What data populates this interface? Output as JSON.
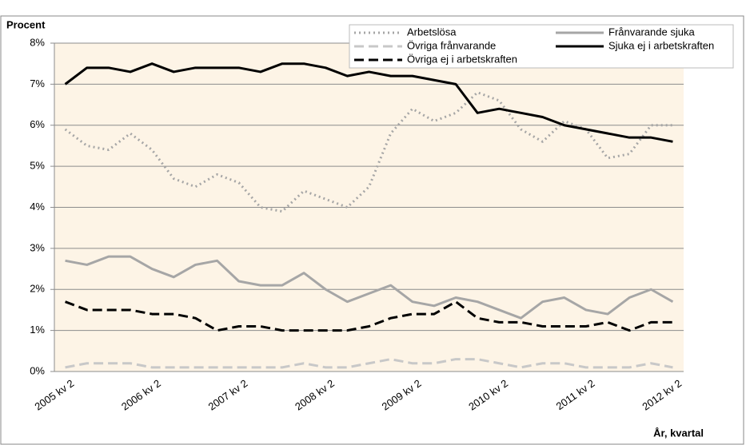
{
  "chart_data": {
    "type": "line",
    "y_label": "Procent",
    "x_label": "År, kvartal",
    "categories": [
      "2005 kv 2",
      null,
      null,
      null,
      "2006 kv 2",
      null,
      null,
      null,
      "2007 kv 2",
      null,
      null,
      null,
      "2008 kv 2",
      null,
      null,
      null,
      "2009 kv 2",
      null,
      null,
      null,
      "2010 kv 2",
      null,
      null,
      null,
      "2011 kv 2",
      null,
      null,
      null,
      "2012 kv 2"
    ],
    "series": [
      {
        "name": "Arbetslösa",
        "color": "#a6a6a6",
        "style": "dotted",
        "values": [
          5.9,
          5.5,
          5.4,
          5.8,
          5.4,
          4.7,
          4.5,
          4.8,
          4.6,
          4.0,
          3.9,
          4.4,
          4.2,
          4.0,
          4.5,
          5.8,
          6.4,
          6.1,
          6.3,
          6.8,
          6.6,
          5.9,
          5.6,
          6.1,
          5.9,
          5.2,
          5.3,
          6.0,
          6.0
        ]
      },
      {
        "name": "Frånvarande sjuka",
        "color": "#a6a6a6",
        "style": "solid",
        "values": [
          2.7,
          2.6,
          2.8,
          2.8,
          2.5,
          2.3,
          2.6,
          2.7,
          2.2,
          2.1,
          2.1,
          2.4,
          2.0,
          1.7,
          1.9,
          2.1,
          1.7,
          1.6,
          1.8,
          1.7,
          1.5,
          1.3,
          1.7,
          1.8,
          1.5,
          1.4,
          1.8,
          2.0,
          1.7
        ]
      },
      {
        "name": "Övriga frånvarande",
        "color": "#c8c8c8",
        "style": "dashed",
        "values": [
          0.1,
          0.2,
          0.2,
          0.2,
          0.1,
          0.1,
          0.1,
          0.1,
          0.1,
          0.1,
          0.1,
          0.2,
          0.1,
          0.1,
          0.2,
          0.3,
          0.2,
          0.2,
          0.3,
          0.3,
          0.2,
          0.1,
          0.2,
          0.2,
          0.1,
          0.1,
          0.1,
          0.2,
          0.1
        ]
      },
      {
        "name": "Sjuka ej i arbetskraften",
        "color": "#000000",
        "style": "solid",
        "values": [
          7.0,
          7.4,
          7.4,
          7.3,
          7.5,
          7.3,
          7.4,
          7.4,
          7.4,
          7.3,
          7.5,
          7.5,
          7.4,
          7.2,
          7.3,
          7.2,
          7.2,
          7.1,
          7.0,
          6.3,
          6.4,
          6.3,
          6.2,
          6.0,
          5.9,
          5.8,
          5.7,
          5.7,
          5.6
        ]
      },
      {
        "name": "Övriga ej i arbetskraften",
        "color": "#000000",
        "style": "dashed",
        "values": [
          1.7,
          1.5,
          1.5,
          1.5,
          1.4,
          1.4,
          1.3,
          1.0,
          1.1,
          1.1,
          1.0,
          1.0,
          1.0,
          1.0,
          1.1,
          1.3,
          1.4,
          1.4,
          1.7,
          1.3,
          1.2,
          1.2,
          1.1,
          1.1,
          1.1,
          1.2,
          1.0,
          1.2,
          1.2
        ]
      }
    ],
    "ylim": [
      0,
      8
    ],
    "yticks": [
      {
        "value": 0,
        "label": "0%"
      },
      {
        "value": 1,
        "label": "1%"
      },
      {
        "value": 2,
        "label": "2%"
      },
      {
        "value": 3,
        "label": "3%"
      },
      {
        "value": 4,
        "label": "4%"
      },
      {
        "value": 5,
        "label": "5%"
      },
      {
        "value": 6,
        "label": "6%"
      },
      {
        "value": 7,
        "label": "7%"
      },
      {
        "value": 8,
        "label": "8%"
      }
    ],
    "grid": true,
    "legend": "top-right",
    "plot_background": "#fdf4e6"
  }
}
